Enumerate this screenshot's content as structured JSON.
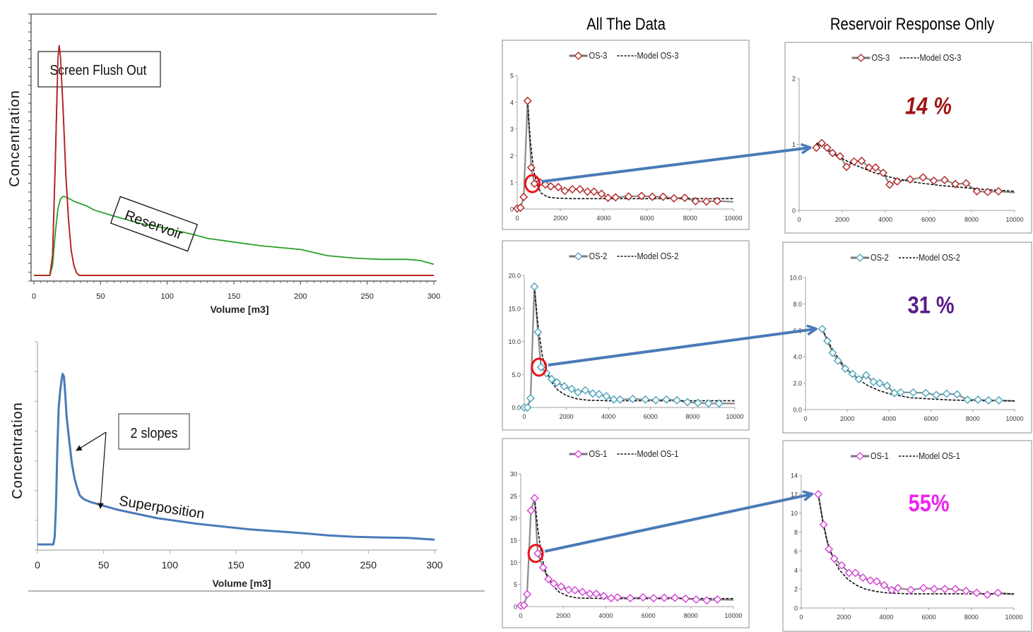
{
  "headers": {
    "all_data": "All The Data",
    "reservoir_only": "Reservoir Response Only"
  },
  "chart_data": [
    {
      "id": "flush-vs-reservoir",
      "type": "line",
      "title": "",
      "xlabel": "Volume [m3]",
      "ylabel": "Concentration",
      "xlim": [
        0,
        300
      ],
      "xticks": [
        0,
        50,
        100,
        150,
        200,
        250,
        300
      ],
      "ylim": [
        0,
        1
      ],
      "grid": false,
      "annotations": [
        "Screen Flush Out",
        "Reservoir"
      ],
      "series": [
        {
          "name": "Screen Flush Out",
          "color": "#b22222",
          "x": [
            0,
            12,
            14,
            16,
            18,
            19,
            20,
            22,
            24,
            26,
            28,
            30,
            32,
            34,
            36,
            300
          ],
          "y": [
            0,
            0,
            0.08,
            0.45,
            0.88,
            0.93,
            0.88,
            0.66,
            0.4,
            0.22,
            0.1,
            0.04,
            0.01,
            0,
            0,
            0
          ]
        },
        {
          "name": "Reservoir",
          "color": "#2ca02c",
          "x": [
            0,
            12,
            14,
            16,
            18,
            20,
            22,
            25,
            30,
            40,
            45,
            60,
            80,
            100,
            120,
            130,
            150,
            170,
            190,
            200,
            220,
            240,
            260,
            280,
            290,
            300
          ],
          "y": [
            0,
            0,
            0.04,
            0.17,
            0.27,
            0.31,
            0.32,
            0.315,
            0.3,
            0.28,
            0.265,
            0.24,
            0.21,
            0.19,
            0.165,
            0.15,
            0.135,
            0.12,
            0.11,
            0.105,
            0.08,
            0.07,
            0.065,
            0.065,
            0.06,
            0.045
          ]
        }
      ]
    },
    {
      "id": "superposition",
      "type": "line",
      "title": "",
      "xlabel": "Volume [m3]",
      "ylabel": "Concentration",
      "xlim": [
        0,
        300
      ],
      "xticks": [
        0,
        50,
        100,
        150,
        200,
        250,
        300
      ],
      "ylim": [
        0,
        1
      ],
      "grid": false,
      "annotations": [
        "2 slopes",
        "Superposition"
      ],
      "series": [
        {
          "name": "Superposition",
          "color": "#4a7ab8",
          "x": [
            0,
            12,
            13,
            14,
            15,
            16,
            17,
            18,
            19,
            20,
            21,
            22,
            24,
            26,
            28,
            30,
            32,
            35,
            40,
            45,
            50,
            60,
            70,
            80,
            90,
            100,
            120,
            140,
            160,
            180,
            200,
            220,
            240,
            260,
            280,
            290,
            300
          ],
          "y": [
            0,
            0,
            0.04,
            0.2,
            0.5,
            0.72,
            0.8,
            0.86,
            0.905,
            0.89,
            0.8,
            0.68,
            0.55,
            0.43,
            0.35,
            0.3,
            0.26,
            0.24,
            0.225,
            0.215,
            0.205,
            0.185,
            0.17,
            0.155,
            0.14,
            0.13,
            0.11,
            0.095,
            0.08,
            0.07,
            0.06,
            0.048,
            0.04,
            0.037,
            0.035,
            0.03,
            0.025
          ]
        }
      ]
    },
    {
      "id": "os3-all",
      "type": "line",
      "title": "",
      "xlim": [
        0,
        10000
      ],
      "xticks": [
        0,
        2000,
        4000,
        6000,
        8000,
        10000
      ],
      "ylim": [
        0,
        5
      ],
      "yticks": [
        "0",
        "1",
        "2",
        "3",
        "4",
        "5"
      ],
      "grid": false,
      "legend": "top-center",
      "series": [
        {
          "name": "OS-3",
          "marker": "diamond",
          "marker_color": "#b22222",
          "x": [
            0,
            150,
            300,
            480,
            650,
            800,
            1050,
            1300,
            1550,
            1900,
            2200,
            2550,
            2900,
            3250,
            3550,
            3900,
            4200,
            4550,
            5150,
            5750,
            6250,
            6750,
            7250,
            7750,
            8250,
            8750,
            9250,
            10000
          ],
          "y": [
            0.02,
            0.05,
            0.45,
            4.05,
            1.55,
            0.95,
            1.0,
            0.92,
            0.85,
            0.82,
            0.68,
            0.74,
            0.74,
            0.65,
            0.65,
            0.57,
            0.42,
            0.44,
            0.47,
            0.49,
            0.46,
            0.46,
            0.4,
            0.42,
            0.29,
            0.28,
            0.3,
            0.27
          ]
        },
        {
          "name": "Model OS-3",
          "style": "dashed",
          "x": [
            480,
            600,
            750,
            900,
            1100,
            1400,
            1800,
            2500,
            4000,
            6000,
            8000,
            10000
          ],
          "y": [
            4.05,
            2.6,
            1.5,
            0.95,
            0.6,
            0.45,
            0.41,
            0.39,
            0.39,
            0.39,
            0.39,
            0.39
          ]
        }
      ],
      "highlight_point": {
        "x": 800,
        "y": 0.95
      }
    },
    {
      "id": "os3-reservoir",
      "type": "line",
      "xlim": [
        0,
        10000
      ],
      "xticks": [
        0,
        2000,
        4000,
        6000,
        8000,
        10000
      ],
      "ylim": [
        0,
        2
      ],
      "yticks": [
        "0",
        "1",
        "2"
      ],
      "grid": false,
      "legend": "top-center",
      "annotation": "14 %",
      "annotation_color": "#a01212",
      "series": [
        {
          "name": "OS-3",
          "marker": "diamond",
          "marker_color": "#b22222",
          "x": [
            800,
            1050,
            1300,
            1550,
            1900,
            2200,
            2550,
            2900,
            3250,
            3550,
            3900,
            4200,
            4550,
            5150,
            5750,
            6250,
            6750,
            7250,
            7750,
            8250,
            8750,
            9250,
            10000
          ],
          "y": [
            0.95,
            1.02,
            0.95,
            0.87,
            0.82,
            0.66,
            0.74,
            0.75,
            0.65,
            0.65,
            0.57,
            0.39,
            0.44,
            0.47,
            0.5,
            0.45,
            0.46,
            0.4,
            0.41,
            0.29,
            0.28,
            0.29,
            0.27
          ]
        },
        {
          "name": "Model OS-3",
          "style": "dashed",
          "x": [
            800,
            1500,
            2500,
            3500,
            4500,
            5500,
            6500,
            7500,
            8500,
            10000
          ],
          "y": [
            1.02,
            0.87,
            0.7,
            0.57,
            0.48,
            0.42,
            0.38,
            0.35,
            0.32,
            0.29
          ]
        }
      ]
    },
    {
      "id": "os2-all",
      "type": "line",
      "xlim": [
        0,
        10000
      ],
      "xticks": [
        0,
        2000,
        4000,
        6000,
        8000,
        10000
      ],
      "ylim": [
        0,
        20
      ],
      "yticks": [
        "0.0",
        "5.0",
        "10.0",
        "15.0",
        "20.0"
      ],
      "grid": false,
      "legend": "top-center",
      "series": [
        {
          "name": "OS-2",
          "marker": "diamond",
          "marker_color": "#4aa3bb",
          "x": [
            0,
            150,
            300,
            480,
            650,
            800,
            1050,
            1300,
            1550,
            1900,
            2250,
            2550,
            2900,
            3250,
            3550,
            3900,
            4250,
            4550,
            5150,
            5750,
            6250,
            6750,
            7250,
            7750,
            8250,
            8750,
            9250,
            10000
          ],
          "y": [
            0,
            0,
            1.4,
            18.3,
            11.4,
            6.1,
            5.2,
            4.3,
            3.8,
            3.2,
            2.8,
            2.3,
            2.6,
            2.1,
            2.0,
            1.7,
            1.2,
            1.2,
            1.3,
            1.2,
            1.1,
            1.2,
            1.1,
            0.8,
            0.7,
            0.6,
            0.6,
            0.6
          ]
        },
        {
          "name": "Model OS-2",
          "style": "dashed",
          "x": [
            480,
            650,
            850,
            1050,
            1300,
            1600,
            2000,
            2500,
            3000,
            4000,
            6000,
            8000,
            10000
          ],
          "y": [
            18.3,
            12.5,
            8.0,
            5.5,
            3.8,
            2.6,
            1.8,
            1.3,
            1.1,
            1.0,
            1.0,
            1.0,
            1.0
          ]
        }
      ],
      "highlight_point": {
        "x": 800,
        "y": 6.1
      }
    },
    {
      "id": "os2-reservoir",
      "type": "line",
      "xlim": [
        0,
        10000
      ],
      "xticks": [
        0,
        2000,
        4000,
        6000,
        8000,
        10000
      ],
      "ylim": [
        0,
        10
      ],
      "yticks": [
        "0.0",
        "2.0",
        "4.0",
        "6.0",
        "8.0",
        "10.0"
      ],
      "grid": false,
      "legend": "top-center",
      "annotation": "31 %",
      "annotation_color": "#5a1a8a",
      "series": [
        {
          "name": "OS-2",
          "marker": "diamond",
          "marker_color": "#4aa3bb",
          "x": [
            800,
            1050,
            1300,
            1550,
            1900,
            2250,
            2550,
            2900,
            3250,
            3550,
            3900,
            4250,
            4550,
            5150,
            5750,
            6250,
            6750,
            7250,
            7750,
            8250,
            8750,
            9250,
            10000
          ],
          "y": [
            6.1,
            5.2,
            4.3,
            3.7,
            3.1,
            2.7,
            2.3,
            2.6,
            2.1,
            2.0,
            1.8,
            1.25,
            1.3,
            1.3,
            1.25,
            1.1,
            1.2,
            1.15,
            0.75,
            0.75,
            0.7,
            0.7,
            0.65
          ]
        },
        {
          "name": "Model OS-2",
          "style": "dashed",
          "x": [
            800,
            1200,
            1600,
            2000,
            2500,
            3000,
            3500,
            4000,
            5000,
            6000,
            7000,
            8000,
            10000
          ],
          "y": [
            6.1,
            4.8,
            3.8,
            3.0,
            2.3,
            1.8,
            1.45,
            1.2,
            0.9,
            0.8,
            0.72,
            0.68,
            0.65
          ]
        }
      ]
    },
    {
      "id": "os1-all",
      "type": "line",
      "xlim": [
        0,
        10000
      ],
      "xticks": [
        0,
        2000,
        4000,
        6000,
        8000,
        10000
      ],
      "ylim": [
        0,
        30
      ],
      "yticks": [
        "0",
        "5",
        "10",
        "15",
        "20",
        "25",
        "30"
      ],
      "grid": false,
      "legend": "top-center",
      "series": [
        {
          "name": "OS-1",
          "marker": "diamond",
          "marker_color": "#d63fd6",
          "x": [
            0,
            150,
            300,
            480,
            650,
            800,
            1050,
            1300,
            1550,
            1900,
            2250,
            2550,
            2900,
            3250,
            3550,
            3900,
            4250,
            4550,
            5150,
            5750,
            6250,
            6750,
            7250,
            7750,
            8250,
            8750,
            9250,
            10000
          ],
          "y": [
            0.2,
            0.3,
            2.8,
            21.7,
            24.5,
            12.0,
            8.8,
            6.2,
            5.2,
            4.5,
            3.8,
            3.7,
            3.3,
            2.9,
            2.9,
            2.4,
            1.9,
            2.1,
            1.9,
            2.1,
            1.9,
            2.0,
            2.0,
            1.8,
            1.6,
            1.4,
            1.6,
            1.5
          ]
        },
        {
          "name": "Model OS-1",
          "style": "dashed",
          "x": [
            650,
            800,
            1000,
            1200,
            1500,
            1800,
            2200,
            2600,
            3000,
            4000,
            6000,
            8000,
            10000
          ],
          "y": [
            24.5,
            17.5,
            11.0,
            7.5,
            4.8,
            3.3,
            2.4,
            2.0,
            1.9,
            1.8,
            1.8,
            1.8,
            1.8
          ]
        }
      ],
      "highlight_point": {
        "x": 800,
        "y": 12.0
      }
    },
    {
      "id": "os1-reservoir",
      "type": "line",
      "xlim": [
        0,
        10000
      ],
      "xticks": [
        0,
        2000,
        4000,
        6000,
        8000,
        10000
      ],
      "ylim": [
        0,
        14
      ],
      "yticks": [
        "0",
        "2",
        "4",
        "6",
        "8",
        "10",
        "12",
        "14"
      ],
      "grid": false,
      "legend": "top-center",
      "annotation": "55%",
      "annotation_color": "#ee22ee",
      "series": [
        {
          "name": "OS-1",
          "marker": "diamond",
          "marker_color": "#d63fd6",
          "x": [
            800,
            1050,
            1300,
            1550,
            1900,
            2250,
            2550,
            2900,
            3250,
            3550,
            3900,
            4250,
            4550,
            5150,
            5750,
            6250,
            6750,
            7250,
            7750,
            8250,
            8750,
            9250,
            10000
          ],
          "y": [
            12.0,
            8.8,
            6.2,
            5.2,
            4.5,
            3.7,
            3.7,
            3.2,
            2.9,
            2.8,
            2.4,
            1.9,
            2.1,
            1.9,
            2.1,
            2.0,
            2.0,
            2.0,
            1.8,
            1.6,
            1.4,
            1.6,
            1.45
          ]
        },
        {
          "name": "Model OS-1",
          "style": "dashed",
          "x": [
            800,
            1000,
            1200,
            1500,
            1800,
            2200,
            2600,
            3000,
            3500,
            4000,
            5000,
            6000,
            8000,
            10000
          ],
          "y": [
            12.0,
            9.2,
            7.2,
            5.2,
            4.0,
            3.0,
            2.4,
            2.0,
            1.75,
            1.6,
            1.5,
            1.5,
            1.5,
            1.5
          ]
        }
      ]
    }
  ]
}
